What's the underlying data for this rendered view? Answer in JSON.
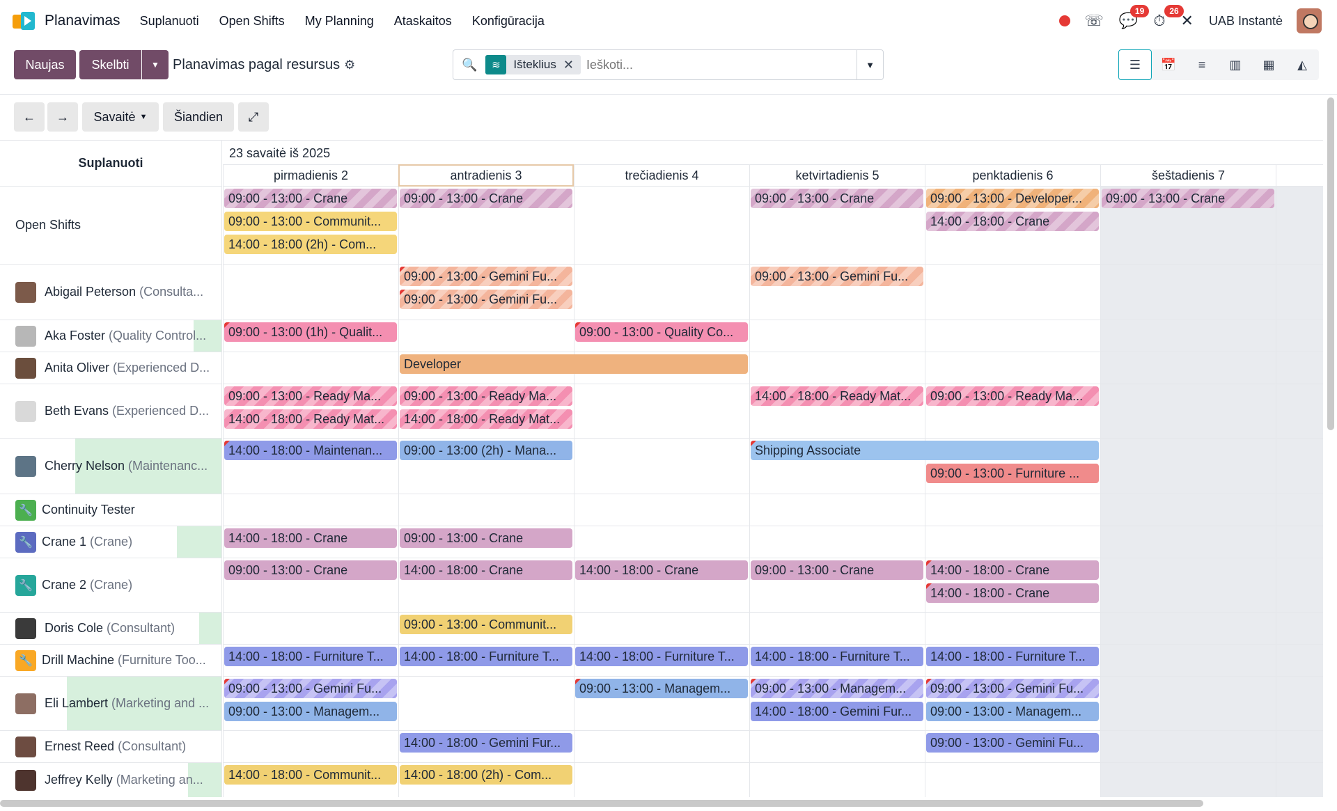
{
  "nav": {
    "brand": "Planavimas",
    "menu": [
      "Suplanuoti",
      "Open Shifts",
      "My Planning",
      "Ataskaitos",
      "Konfigūracija"
    ],
    "messages_badge": "19",
    "activity_badge": "26",
    "company": "UAB Instantė"
  },
  "control": {
    "new_label": "Naujas",
    "publish_label": "Skelbti",
    "title": "Planavimas pagal resursus",
    "search_facet": "Išteklius",
    "search_placeholder": "Ieškoti...",
    "views": [
      "gantt-resource-icon",
      "calendar-icon",
      "list-icon",
      "kanban-icon",
      "pivot-icon",
      "graph-icon"
    ]
  },
  "toolbar": {
    "prev": "←",
    "next": "→",
    "scale": "Savaitė",
    "today": "Šiandien",
    "expand": "⤢"
  },
  "gantt": {
    "group_header": "Suplanuoti",
    "week_label": "23 savaitė iš 2025",
    "days": [
      "pirmadienis 2",
      "antradienis 3",
      "trečiadienis 4",
      "ketvirtadienis 5",
      "penktadienis 6",
      "šeštadienis 7"
    ],
    "rows": [
      {
        "name": "Open Shifts",
        "role": "",
        "kind": "none"
      },
      {
        "name": "Abigail Peterson",
        "role": "(Consulta...",
        "kind": "avatar",
        "color": "#7c5a4a"
      },
      {
        "name": "Aka Foster",
        "role": "(Quality Control...",
        "kind": "avatar",
        "color": "#b7b7b7"
      },
      {
        "name": "Anita Oliver",
        "role": "(Experienced D...",
        "kind": "avatar",
        "color": "#6b4e3d"
      },
      {
        "name": "Beth Evans",
        "role": "(Experienced D...",
        "kind": "avatar",
        "color": "#d9d9d9"
      },
      {
        "name": "Cherry Nelson",
        "role": "(Maintenanc...",
        "kind": "avatar",
        "color": "#5d7486"
      },
      {
        "name": "Continuity Tester",
        "role": "",
        "kind": "icon",
        "color": "#4caf50"
      },
      {
        "name": "Crane 1",
        "role": "(Crane)",
        "kind": "icon",
        "color": "#5c6bc0"
      },
      {
        "name": "Crane 2",
        "role": "(Crane)",
        "kind": "icon",
        "color": "#26a69a"
      },
      {
        "name": "Doris Cole",
        "role": "(Consultant)",
        "kind": "avatar",
        "color": "#3a3a3a"
      },
      {
        "name": "Drill Machine",
        "role": "(Furniture Too...",
        "kind": "icon",
        "color": "#f9a825"
      },
      {
        "name": "Eli Lambert",
        "role": "(Marketing and ...",
        "kind": "avatar",
        "color": "#8d6e63"
      },
      {
        "name": "Ernest Reed",
        "role": "(Consultant)",
        "kind": "avatar",
        "color": "#6d4c41"
      },
      {
        "name": "Jeffrey Kelly",
        "role": "(Marketing an...",
        "kind": "avatar",
        "color": "#4e342e"
      }
    ],
    "shifts": [
      {
        "row": 0,
        "day": 0,
        "slot": 0,
        "span": 1,
        "label": "09:00 - 13:00 - Crane",
        "color": "#d4a6c8",
        "striped": true
      },
      {
        "row": 0,
        "day": 0,
        "slot": 1,
        "span": 1,
        "label": "09:00 - 13:00 - Communit...",
        "color": "#f5d67a",
        "striped": false
      },
      {
        "row": 0,
        "day": 0,
        "slot": 2,
        "span": 1,
        "label": "14:00 - 18:00 (2h) - Com...",
        "color": "#f5d67a",
        "striped": false
      },
      {
        "row": 0,
        "day": 1,
        "slot": 0,
        "span": 1,
        "label": "09:00 - 13:00 - Crane",
        "color": "#d4a6c8",
        "striped": true
      },
      {
        "row": 0,
        "day": 3,
        "slot": 0,
        "span": 1,
        "label": "09:00 - 13:00 - Crane",
        "color": "#d4a6c8",
        "striped": true
      },
      {
        "row": 0,
        "day": 4,
        "slot": 0,
        "span": 1,
        "label": "09:00 - 13:00 - Developer...",
        "color": "#f0b27a",
        "striped": true
      },
      {
        "row": 0,
        "day": 4,
        "slot": 1,
        "span": 1,
        "label": "14:00 - 18:00 - Crane",
        "color": "#d4a6c8",
        "striped": true
      },
      {
        "row": 0,
        "day": 5,
        "slot": 0,
        "span": 1,
        "label": "09:00 - 13:00 - Crane",
        "color": "#d4a6c8",
        "striped": true
      },
      {
        "row": 1,
        "day": 1,
        "slot": 0,
        "span": 1,
        "label": "09:00 - 13:00 - Gemini Fu...",
        "color": "#f4b59c",
        "striped": true,
        "tri": true
      },
      {
        "row": 1,
        "day": 1,
        "slot": 1,
        "span": 1,
        "label": "09:00 - 13:00 - Gemini Fu...",
        "color": "#f4b59c",
        "striped": true,
        "tri": true
      },
      {
        "row": 1,
        "day": 3,
        "slot": 0,
        "span": 1,
        "label": "09:00 - 13:00 - Gemini Fu...",
        "color": "#f4b59c",
        "striped": true
      },
      {
        "row": 2,
        "day": 0,
        "slot": 0,
        "span": 1,
        "label": "09:00 - 13:00 (1h) - Qualit...",
        "color": "#f48fb1",
        "striped": false,
        "tri": true
      },
      {
        "row": 2,
        "day": 2,
        "slot": 0,
        "span": 1,
        "label": "09:00 - 13:00 - Quality Co...",
        "color": "#f48fb1",
        "striped": false,
        "tri": true
      },
      {
        "row": 3,
        "day": 1,
        "slot": 0,
        "span": 2,
        "label": "Developer",
        "color": "#efb27e",
        "striped": false
      },
      {
        "row": 4,
        "day": 0,
        "slot": 0,
        "span": 1,
        "label": "09:00 - 13:00 - Ready Ma...",
        "color": "#f48fb1",
        "striped": true
      },
      {
        "row": 4,
        "day": 0,
        "slot": 1,
        "span": 1,
        "label": "14:00 - 18:00 - Ready Mat...",
        "color": "#f48fb1",
        "striped": true
      },
      {
        "row": 4,
        "day": 1,
        "slot": 0,
        "span": 1,
        "label": "09:00 - 13:00 - Ready Ma...",
        "color": "#f48fb1",
        "striped": true
      },
      {
        "row": 4,
        "day": 1,
        "slot": 1,
        "span": 1,
        "label": "14:00 - 18:00 - Ready Mat...",
        "color": "#f48fb1",
        "striped": true
      },
      {
        "row": 4,
        "day": 3,
        "slot": 0,
        "span": 1,
        "label": "14:00 - 18:00 - Ready Mat...",
        "color": "#f48fb1",
        "striped": true
      },
      {
        "row": 4,
        "day": 4,
        "slot": 0,
        "span": 1,
        "label": "09:00 - 13:00 - Ready Ma...",
        "color": "#f48fb1",
        "striped": true
      },
      {
        "row": 5,
        "day": 0,
        "slot": 0,
        "span": 1,
        "label": "14:00 - 18:00 - Maintenan...",
        "color": "#8f9ae8",
        "striped": false,
        "tri": true
      },
      {
        "row": 5,
        "day": 1,
        "slot": 0,
        "span": 1,
        "label": "09:00 - 13:00 (2h) - Mana...",
        "color": "#90b4e8",
        "striped": false
      },
      {
        "row": 5,
        "day": 3,
        "slot": 0,
        "span": 2,
        "label": "Shipping Associate",
        "color": "#9cc3ee",
        "striped": false,
        "tri": true
      },
      {
        "row": 5,
        "day": 4,
        "slot": 1,
        "span": 1,
        "label": "09:00 - 13:00 - Furniture ...",
        "color": "#f08b8b",
        "striped": false
      },
      {
        "row": 7,
        "day": 0,
        "slot": 0,
        "span": 1,
        "label": "14:00 - 18:00 - Crane",
        "color": "#d4a6c8",
        "striped": false
      },
      {
        "row": 7,
        "day": 1,
        "slot": 0,
        "span": 1,
        "label": "09:00 - 13:00 - Crane",
        "color": "#d4a6c8",
        "striped": false
      },
      {
        "row": 8,
        "day": 0,
        "slot": 0,
        "span": 1,
        "label": "09:00 - 13:00 - Crane",
        "color": "#d4a6c8",
        "striped": false
      },
      {
        "row": 8,
        "day": 1,
        "slot": 0,
        "span": 1,
        "label": "14:00 - 18:00 - Crane",
        "color": "#d4a6c8",
        "striped": false
      },
      {
        "row": 8,
        "day": 2,
        "slot": 0,
        "span": 1,
        "label": "14:00 - 18:00 - Crane",
        "color": "#d4a6c8",
        "striped": false
      },
      {
        "row": 8,
        "day": 3,
        "slot": 0,
        "span": 1,
        "label": "09:00 - 13:00 - Crane",
        "color": "#d4a6c8",
        "striped": false
      },
      {
        "row": 8,
        "day": 4,
        "slot": 0,
        "span": 1,
        "label": "14:00 - 18:00 - Crane",
        "color": "#d4a6c8",
        "striped": false,
        "tri": true
      },
      {
        "row": 8,
        "day": 4,
        "slot": 1,
        "span": 1,
        "label": "14:00 - 18:00 - Crane",
        "color": "#d4a6c8",
        "striped": false,
        "tri": true
      },
      {
        "row": 9,
        "day": 1,
        "slot": 0,
        "span": 1,
        "label": "09:00 - 13:00 - Communit...",
        "color": "#f1d173",
        "striped": false
      },
      {
        "row": 10,
        "day": 0,
        "slot": 0,
        "span": 1,
        "label": "14:00 - 18:00 - Furniture T...",
        "color": "#8f9ae8",
        "striped": false
      },
      {
        "row": 10,
        "day": 1,
        "slot": 0,
        "span": 1,
        "label": "14:00 - 18:00 - Furniture T...",
        "color": "#8f9ae8",
        "striped": false
      },
      {
        "row": 10,
        "day": 2,
        "slot": 0,
        "span": 1,
        "label": "14:00 - 18:00 - Furniture T...",
        "color": "#8f9ae8",
        "striped": false
      },
      {
        "row": 10,
        "day": 3,
        "slot": 0,
        "span": 1,
        "label": "14:00 - 18:00 - Furniture T...",
        "color": "#8f9ae8",
        "striped": false
      },
      {
        "row": 10,
        "day": 4,
        "slot": 0,
        "span": 1,
        "label": "14:00 - 18:00 - Furniture T...",
        "color": "#8f9ae8",
        "striped": false
      },
      {
        "row": 11,
        "day": 0,
        "slot": 0,
        "span": 1,
        "label": "09:00 - 13:00 - Gemini Fu...",
        "color": "#a8a3ef",
        "striped": true,
        "tri": true
      },
      {
        "row": 11,
        "day": 0,
        "slot": 1,
        "span": 1,
        "label": "09:00 - 13:00 - Managem...",
        "color": "#90b4e8",
        "striped": false
      },
      {
        "row": 11,
        "day": 2,
        "slot": 0,
        "span": 1,
        "label": "09:00 - 13:00 - Managem...",
        "color": "#90b4e8",
        "striped": false,
        "tri": true
      },
      {
        "row": 11,
        "day": 3,
        "slot": 0,
        "span": 1,
        "label": "09:00 - 13:00 - Managem...",
        "color": "#a8a3ef",
        "striped": true,
        "tri": true
      },
      {
        "row": 11,
        "day": 3,
        "slot": 1,
        "span": 1,
        "label": "14:00 - 18:00 - Gemini Fur...",
        "color": "#8f9ae8",
        "striped": false
      },
      {
        "row": 11,
        "day": 4,
        "slot": 0,
        "span": 1,
        "label": "09:00 - 13:00 - Gemini Fu...",
        "color": "#a8a3ef",
        "striped": true,
        "tri": true
      },
      {
        "row": 11,
        "day": 4,
        "slot": 1,
        "span": 1,
        "label": "09:00 - 13:00 - Managem...",
        "color": "#90b4e8",
        "striped": false
      },
      {
        "row": 12,
        "day": 1,
        "slot": 0,
        "span": 1,
        "label": "14:00 - 18:00 - Gemini Fur...",
        "color": "#8f9ae8",
        "striped": false
      },
      {
        "row": 12,
        "day": 4,
        "slot": 0,
        "span": 1,
        "label": "09:00 - 13:00 - Gemini Fu...",
        "color": "#8f9ae8",
        "striped": false
      },
      {
        "row": 13,
        "day": 0,
        "slot": 0,
        "span": 1,
        "label": "14:00 - 18:00 - Communit...",
        "color": "#f1d173",
        "striped": false
      },
      {
        "row": 13,
        "day": 1,
        "slot": 0,
        "span": 1,
        "label": "14:00 - 18:00 (2h) - Com...",
        "color": "#f1d173",
        "striped": false
      }
    ]
  }
}
